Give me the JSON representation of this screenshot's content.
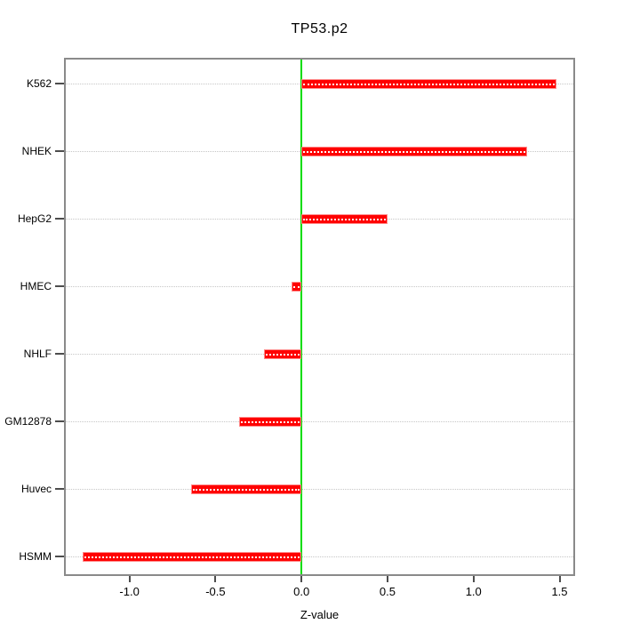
{
  "chart_data": {
    "type": "bar",
    "orientation": "horizontal",
    "title": "TP53.p2",
    "xlabel": "Z-value",
    "ylabel": "",
    "categories": [
      "K562",
      "NHEK",
      "HepG2",
      "HMEC",
      "NHLF",
      "GM12878",
      "Huvec",
      "HSMM"
    ],
    "values": [
      1.48,
      1.31,
      0.5,
      -0.06,
      -0.22,
      -0.36,
      -0.64,
      -1.27
    ],
    "x_tick_values": [
      -1.0,
      -0.5,
      0.0,
      0.5,
      1.0,
      1.5
    ],
    "x_tick_labels": [
      "-1.0",
      "-0.5",
      "0.0",
      "0.5",
      "1.0",
      "1.5"
    ],
    "xlim": [
      -1.37,
      1.58
    ],
    "zero_line": 0.0,
    "grid": "horizontal-dotted",
    "legend": "none",
    "colors": {
      "bar_fill": "#ff0000",
      "bar_edge": "#ff8a8a",
      "bar_center_dots": "#ffffff",
      "zero_line": "#00dd00",
      "gridline": "#c6c6c6",
      "panel_border": "#8a8a8a",
      "tick": "#4d4d4d",
      "text": "#000000",
      "background": "#ffffff"
    }
  }
}
